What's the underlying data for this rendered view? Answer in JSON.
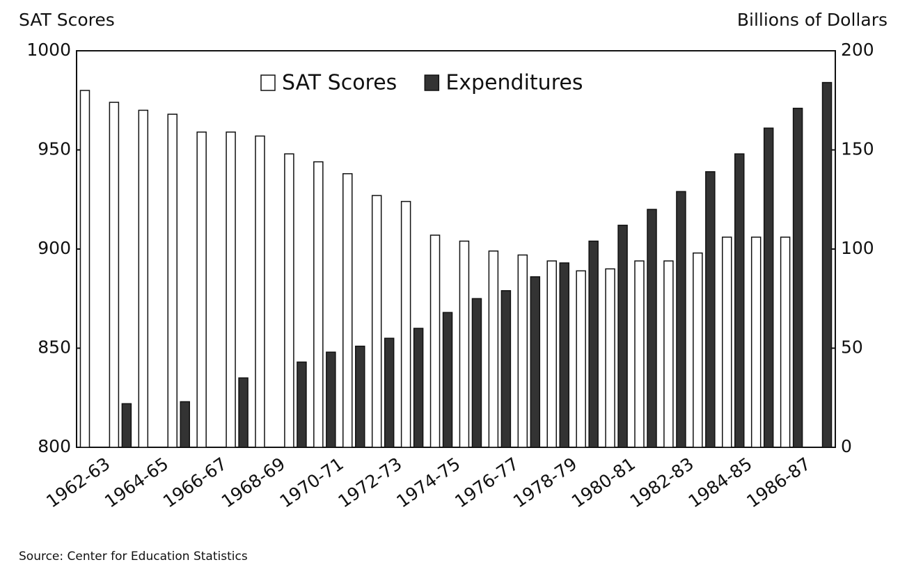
{
  "chart_data": {
    "type": "bar",
    "y_label": "SAT Scores",
    "y2_label": "Billions of Dollars",
    "source": "Source:  Center for Education Statistics",
    "categories": [
      "1962-63",
      null,
      "1964-65",
      null,
      "1966-67",
      null,
      "1968-69",
      null,
      "1970-71",
      null,
      "1972-73",
      null,
      "1974-75",
      null,
      "1976-77",
      null,
      "1978-79",
      null,
      "1980-81",
      null,
      "1982-83",
      null,
      "1984-85",
      null,
      "1986-87",
      null
    ],
    "series": [
      {
        "name": "SAT Scores",
        "color": "#ffffff",
        "values": [
          980,
          974,
          970,
          968,
          959,
          959,
          957,
          948,
          944,
          938,
          927,
          924,
          907,
          904,
          899,
          897,
          894,
          889,
          890,
          894,
          894,
          898,
          906,
          906,
          906,
          null
        ]
      },
      {
        "name": "Expenditures",
        "color": "#333333",
        "axis": "y2",
        "values": [
          null,
          22,
          null,
          23,
          null,
          35,
          null,
          43,
          48,
          51,
          55,
          60,
          68,
          75,
          79,
          86,
          93,
          104,
          112,
          120,
          129,
          139,
          148,
          161,
          171,
          184
        ]
      }
    ],
    "ylim": [
      800,
      1000
    ],
    "yticks": [
      800,
      850,
      900,
      950,
      1000
    ],
    "y2lim": [
      0,
      200
    ],
    "y2ticks": [
      0,
      50,
      100,
      150,
      200
    ],
    "legend": "top"
  }
}
